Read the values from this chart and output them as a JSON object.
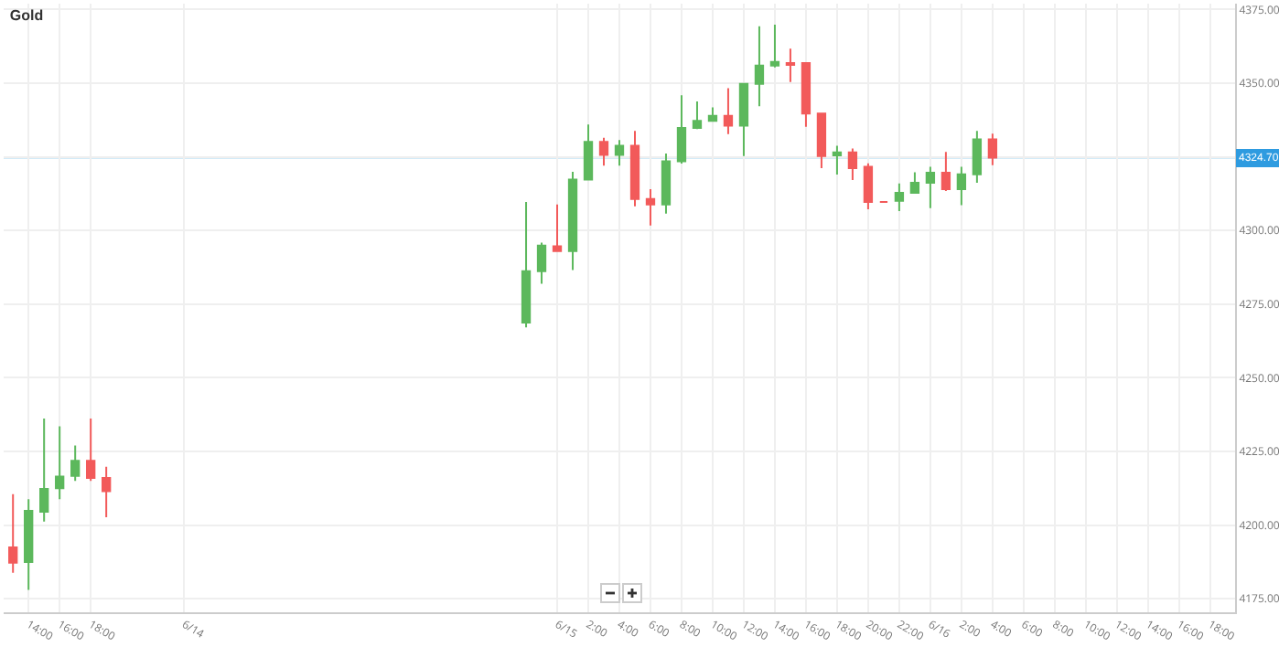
{
  "chart_data": {
    "type": "candlestick",
    "title": "Gold",
    "x": [
      "--06-13T13:00",
      "--06-13T14:00",
      "--06-13T15:00",
      "--06-13T16:00",
      "--06-13T17:00",
      "--06-13T18:00",
      "--06-13T19:00",
      "--06-14T22:00",
      "--06-14T23:00",
      "--06-15T00:00",
      "--06-15T01:00",
      "--06-15T02:00",
      "--06-15T03:00",
      "--06-15T04:00",
      "--06-15T05:00",
      "--06-15T06:00",
      "--06-15T07:00",
      "--06-15T08:00",
      "--06-15T09:00",
      "--06-15T10:00",
      "--06-15T11:00",
      "--06-15T12:00",
      "--06-15T13:00",
      "--06-15T14:00",
      "--06-15T15:00",
      "--06-15T16:00",
      "--06-15T17:00",
      "--06-15T18:00",
      "--06-15T19:00",
      "--06-15T20:00",
      "--06-15T21:00",
      "--06-15T22:00",
      "--06-15T23:00",
      "--06-16T00:00",
      "--06-16T01:00",
      "--06-16T02:00",
      "--06-16T03:00",
      "--06-16T04:00"
    ],
    "ohlc": [
      [
        4192.4,
        4210.5,
        4183.8,
        4187.2
      ],
      [
        4187.5,
        4208.8,
        4178.0,
        4204.8
      ],
      [
        4204.5,
        4236.2,
        4201.2,
        4212.3
      ],
      [
        4212.5,
        4233.5,
        4208.8,
        4216.5
      ],
      [
        4216.7,
        4227.0,
        4215.0,
        4221.8
      ],
      [
        4221.8,
        4236.2,
        4215.0,
        4216.0
      ],
      [
        4216.0,
        4219.8,
        4202.7,
        4211.5
      ],
      [
        4268.7,
        4309.7,
        4267.1,
        4286.2
      ],
      [
        4286.2,
        4295.9,
        4281.9,
        4294.9
      ],
      [
        4294.6,
        4308.8,
        4293.0,
        4293.0
      ],
      [
        4293.0,
        4319.9,
        4286.6,
        4317.3
      ],
      [
        4317.3,
        4336.0,
        4317.3,
        4330.1
      ],
      [
        4330.1,
        4331.5,
        4322.0,
        4325.7
      ],
      [
        4325.7,
        4330.7,
        4322.0,
        4328.8
      ],
      [
        4328.8,
        4333.8,
        4308.2,
        4310.7
      ],
      [
        4310.7,
        4314.0,
        4301.7,
        4308.8
      ],
      [
        4308.8,
        4326.1,
        4305.7,
        4323.5
      ],
      [
        4323.5,
        4345.9,
        4322.7,
        4334.8
      ],
      [
        4334.8,
        4343.8,
        4334.4,
        4337.2
      ],
      [
        4337.2,
        4341.8,
        4336.9,
        4338.9
      ],
      [
        4338.9,
        4348.3,
        4332.7,
        4335.6
      ],
      [
        4335.6,
        4349.8,
        4325.3,
        4349.8
      ],
      [
        4349.8,
        4369.3,
        4342.2,
        4356.0
      ],
      [
        4356.0,
        4369.9,
        4355.4,
        4357.2
      ],
      [
        4356.8,
        4361.7,
        4350.4,
        4356.2
      ],
      [
        4356.8,
        4357.0,
        4335.2,
        4339.7
      ],
      [
        4339.7,
        4339.7,
        4321.2,
        4325.3
      ],
      [
        4325.5,
        4328.8,
        4319.0,
        4326.5
      ],
      [
        4326.5,
        4327.8,
        4317.1,
        4321.2
      ],
      [
        4321.6,
        4322.8,
        4307.2,
        4309.7
      ],
      [
        4309.7,
        4309.7,
        4309.7,
        4309.7
      ],
      [
        4310.1,
        4316.0,
        4306.6,
        4312.8
      ],
      [
        4312.8,
        4319.8,
        4312.8,
        4316.2
      ],
      [
        4316.2,
        4321.6,
        4307.6,
        4319.6
      ],
      [
        4319.6,
        4326.7,
        4313.4,
        4314.0
      ],
      [
        4314.0,
        4321.6,
        4308.6,
        4319.1
      ],
      [
        4319.1,
        4333.8,
        4316.2,
        4330.9
      ],
      [
        4330.9,
        4332.9,
        4322.2,
        4324.7
      ]
    ],
    "xlim": [
      "--06-13T12:24",
      "--06-16T19:36"
    ],
    "xticks": [
      {
        "value": "--06-13T14:00",
        "label": "14:00"
      },
      {
        "value": "--06-13T16:00",
        "label": "16:00"
      },
      {
        "value": "--06-13T18:00",
        "label": "18:00"
      },
      {
        "value": "--06-14T00:00",
        "label": "6/14"
      },
      {
        "value": "--06-15T00:00",
        "label": "6/15"
      },
      {
        "value": "--06-15T02:00",
        "label": "2:00"
      },
      {
        "value": "--06-15T04:00",
        "label": "4:00"
      },
      {
        "value": "--06-15T06:00",
        "label": "6:00"
      },
      {
        "value": "--06-15T08:00",
        "label": "8:00"
      },
      {
        "value": "--06-15T10:00",
        "label": "10:00"
      },
      {
        "value": "--06-15T12:00",
        "label": "12:00"
      },
      {
        "value": "--06-15T14:00",
        "label": "14:00"
      },
      {
        "value": "--06-15T16:00",
        "label": "16:00"
      },
      {
        "value": "--06-15T18:00",
        "label": "18:00"
      },
      {
        "value": "--06-15T20:00",
        "label": "20:00"
      },
      {
        "value": "--06-15T22:00",
        "label": "22:00"
      },
      {
        "value": "--06-16T00:00",
        "label": "6/16"
      },
      {
        "value": "--06-16T02:00",
        "label": "2:00"
      },
      {
        "value": "--06-16T04:00",
        "label": "4:00"
      },
      {
        "value": "--06-16T06:00",
        "label": "6:00"
      },
      {
        "value": "--06-16T08:00",
        "label": "8:00"
      },
      {
        "value": "--06-16T10:00",
        "label": "10:00"
      },
      {
        "value": "--06-16T12:00",
        "label": "12:00"
      },
      {
        "value": "--06-16T14:00",
        "label": "14:00"
      },
      {
        "value": "--06-16T16:00",
        "label": "16:00"
      },
      {
        "value": "--06-16T18:00",
        "label": "18:00"
      }
    ],
    "ylim": [
      4170.4,
      4377
    ],
    "yticks": [
      {
        "value": 4175,
        "label": "4175.00"
      },
      {
        "value": 4200,
        "label": "4200.00"
      },
      {
        "value": 4225,
        "label": "4225.00"
      },
      {
        "value": 4250,
        "label": "4250.00"
      },
      {
        "value": 4275,
        "label": "4275.00"
      },
      {
        "value": 4300,
        "label": "4300.00"
      },
      {
        "value": 4325,
        "label": null
      },
      {
        "value": 4350,
        "label": "4350.00"
      },
      {
        "value": 4375,
        "label": "4375.00"
      }
    ],
    "ref_lines": [
      {
        "axis": "y",
        "value": 4324.7,
        "label": "4324.70",
        "color": "#a8d8f0"
      }
    ],
    "grid": true
  }
}
